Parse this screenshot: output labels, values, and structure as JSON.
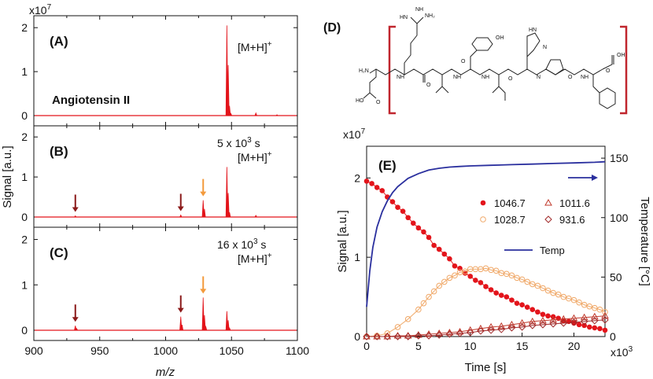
{
  "colors": {
    "spectrum": "#e3141b",
    "dark_arrow": "#8b1a1a",
    "orange_arrow": "#f39a3c",
    "bracket": "#c0262e",
    "temp_line": "#2a2f9e"
  },
  "mass_spectra": {
    "ylabel": "Signal [a.u.]",
    "xlabel": "m/z",
    "multiplier": "x10",
    "multiplier_exp": "7",
    "xlim": [
      900,
      1100
    ],
    "xticks": [
      "900",
      "950",
      "1000",
      "1050",
      "1100"
    ],
    "yticks": [
      "0",
      "1",
      "2"
    ],
    "ion_label": "[M+H]",
    "ion_sup": "+",
    "time_unit": "s",
    "panels": [
      {
        "id": "A",
        "label": "(A)",
        "compound": "Angiotensin II",
        "time": "",
        "peaks": [
          {
            "mz": 1046.5,
            "h": 2.05
          },
          {
            "mz": 1047.5,
            "h": 1.15
          },
          {
            "mz": 1048.5,
            "h": 0.22
          },
          {
            "mz": 1049.5,
            "h": 0.05
          },
          {
            "mz": 1068.5,
            "h": 0.06
          },
          {
            "mz": 1084.5,
            "h": 0.02
          }
        ]
      },
      {
        "id": "B",
        "label": "(B)",
        "compound": "",
        "time": "5 x 10",
        "time_exp": "3",
        "peaks": [
          {
            "mz": 931.5,
            "h": 0.03
          },
          {
            "mz": 1011.5,
            "h": 0.05
          },
          {
            "mz": 1028.5,
            "h": 0.42
          },
          {
            "mz": 1029.5,
            "h": 0.2
          },
          {
            "mz": 1046.5,
            "h": 1.25
          },
          {
            "mz": 1047.5,
            "h": 0.6
          },
          {
            "mz": 1048.5,
            "h": 0.12
          },
          {
            "mz": 1068.5,
            "h": 0.04
          }
        ]
      },
      {
        "id": "C",
        "label": "(C)",
        "compound": "",
        "time": "16 x 10",
        "time_exp": "3",
        "peaks": [
          {
            "mz": 931.5,
            "h": 0.1
          },
          {
            "mz": 932.5,
            "h": 0.04
          },
          {
            "mz": 1011.5,
            "h": 0.3
          },
          {
            "mz": 1012.5,
            "h": 0.12
          },
          {
            "mz": 1028.5,
            "h": 0.72
          },
          {
            "mz": 1029.5,
            "h": 0.33
          },
          {
            "mz": 1030.5,
            "h": 0.08
          },
          {
            "mz": 1046.5,
            "h": 0.42
          },
          {
            "mz": 1047.5,
            "h": 0.22
          },
          {
            "mz": 1048.5,
            "h": 0.05
          }
        ]
      }
    ]
  },
  "structure": {
    "label": "(D)"
  },
  "chart_data": {
    "type": "scatter",
    "label": "(E)",
    "title": "",
    "xlabel": "Time [s]",
    "x_multiplier": "x10",
    "x_multiplier_exp": "3",
    "ylabel": "Signal [a.u.]",
    "y_multiplier": "x10",
    "y_multiplier_exp": "7",
    "y2label": "Temperature [°C]",
    "xlim": [
      0,
      23
    ],
    "ylim": [
      0,
      2.4
    ],
    "y2lim": [
      0,
      160
    ],
    "xticks": [
      "0",
      "5",
      "10",
      "15",
      "20"
    ],
    "yticks": [
      "0",
      "1",
      "2"
    ],
    "y2ticks": [
      "0",
      "50",
      "100",
      "150"
    ],
    "legend": {
      "s1046": "1046.7",
      "s1028": "1028.7",
      "s1011": "1011.6",
      "s931": "931.6",
      "temp": "Temp"
    },
    "series": [
      {
        "name": "1046.7",
        "marker": "filled-circle",
        "color": "#e3141b",
        "x": [
          0,
          0.5,
          1,
          1.5,
          2,
          2.5,
          3,
          3.5,
          4,
          4.5,
          5,
          5.5,
          6,
          6.5,
          7,
          7.5,
          8,
          8.5,
          9,
          9.5,
          10,
          10.5,
          11,
          11.5,
          12,
          12.5,
          13,
          13.5,
          14,
          14.5,
          15,
          15.5,
          16,
          16.5,
          17,
          17.5,
          18,
          18.5,
          19,
          19.5,
          20,
          20.5,
          21,
          21.5,
          22,
          22.5,
          23
        ],
        "y": [
          1.96,
          1.93,
          1.88,
          1.84,
          1.76,
          1.7,
          1.63,
          1.58,
          1.5,
          1.43,
          1.37,
          1.32,
          1.25,
          1.15,
          1.1,
          1.04,
          0.98,
          0.89,
          0.86,
          0.8,
          0.76,
          0.71,
          0.68,
          0.63,
          0.59,
          0.55,
          0.52,
          0.5,
          0.46,
          0.42,
          0.4,
          0.37,
          0.34,
          0.31,
          0.28,
          0.26,
          0.25,
          0.23,
          0.2,
          0.19,
          0.17,
          0.15,
          0.14,
          0.12,
          0.11,
          0.1,
          0.08
        ]
      },
      {
        "name": "1028.7",
        "marker": "open-circle",
        "color": "#f0a868",
        "x": [
          0,
          1,
          2,
          3,
          4,
          5,
          5.5,
          6,
          6.5,
          7,
          7.5,
          8,
          8.5,
          9,
          9.5,
          10,
          10.5,
          11,
          11.5,
          12,
          12.5,
          13,
          13.5,
          14,
          14.5,
          15,
          15.5,
          16,
          16.5,
          17,
          17.5,
          18,
          18.5,
          19,
          19.5,
          20,
          20.5,
          21,
          21.5,
          22,
          22.5,
          23
        ],
        "y": [
          0,
          0.01,
          0.04,
          0.12,
          0.22,
          0.34,
          0.42,
          0.5,
          0.57,
          0.64,
          0.69,
          0.74,
          0.77,
          0.81,
          0.82,
          0.85,
          0.85,
          0.85,
          0.86,
          0.84,
          0.83,
          0.8,
          0.79,
          0.77,
          0.74,
          0.72,
          0.69,
          0.66,
          0.64,
          0.61,
          0.58,
          0.55,
          0.53,
          0.5,
          0.48,
          0.46,
          0.43,
          0.4,
          0.38,
          0.36,
          0.34,
          0.31
        ]
      },
      {
        "name": "1011.6",
        "marker": "open-triangle",
        "color": "#c0392b",
        "x": [
          0,
          1,
          2,
          3,
          4,
          5,
          6,
          7,
          8,
          9,
          10,
          11,
          12,
          13,
          14,
          15,
          16,
          17,
          18,
          19,
          20,
          21,
          22,
          23
        ],
        "y": [
          0,
          0,
          0,
          0.01,
          0.01,
          0.02,
          0.03,
          0.04,
          0.05,
          0.06,
          0.08,
          0.1,
          0.12,
          0.13,
          0.15,
          0.17,
          0.19,
          0.2,
          0.21,
          0.22,
          0.23,
          0.24,
          0.25,
          0.26
        ]
      },
      {
        "name": "931.6",
        "marker": "open-diamond",
        "color": "#a02828",
        "x": [
          0,
          1,
          2,
          3,
          4,
          5,
          6,
          7,
          8,
          9,
          10,
          11,
          12,
          13,
          14,
          15,
          16,
          17,
          18,
          19,
          20,
          21,
          22,
          23
        ],
        "y": [
          0,
          0,
          0,
          0,
          0,
          0.01,
          0.01,
          0.02,
          0.03,
          0.04,
          0.05,
          0.07,
          0.08,
          0.09,
          0.11,
          0.12,
          0.14,
          0.15,
          0.16,
          0.17,
          0.18,
          0.19,
          0.2,
          0.21
        ]
      },
      {
        "name": "Temp",
        "marker": "line",
        "color": "#2a2f9e",
        "axis": "y2",
        "x": [
          0,
          0.3,
          0.6,
          1,
          1.5,
          2,
          2.5,
          3,
          4,
          5,
          6,
          7,
          8,
          9,
          10,
          12,
          14,
          16,
          18,
          20,
          22,
          23
        ],
        "y": [
          25,
          55,
          75,
          92,
          105,
          114,
          121,
          126,
          133,
          137,
          140,
          141.5,
          142.5,
          143,
          143.5,
          144,
          144.5,
          145,
          145.5,
          146,
          146.5,
          147
        ]
      }
    ]
  }
}
